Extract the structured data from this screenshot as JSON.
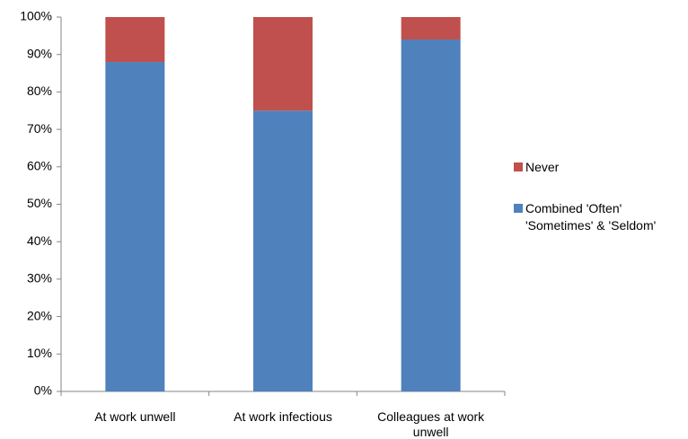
{
  "chart_data": {
    "type": "stacked_bar",
    "categories": [
      "At work unwell",
      "At work infectious",
      "Colleagues at work unwell"
    ],
    "series": [
      {
        "name": "Combined 'Often' 'Sometimes' & 'Seldom'",
        "color": "#4f81bd",
        "values": [
          88,
          75,
          94
        ]
      },
      {
        "name": "Never",
        "color": "#c0504d",
        "values": [
          12,
          25,
          6
        ]
      }
    ],
    "ylim": [
      0,
      100
    ],
    "yticks": [
      {
        "value": 0,
        "label": "0%"
      },
      {
        "value": 10,
        "label": "10%"
      },
      {
        "value": 20,
        "label": "20%"
      },
      {
        "value": 30,
        "label": "30%"
      },
      {
        "value": 40,
        "label": "40%"
      },
      {
        "value": 50,
        "label": "50%"
      },
      {
        "value": 60,
        "label": "60%"
      },
      {
        "value": 70,
        "label": "70%"
      },
      {
        "value": 80,
        "label": "80%"
      },
      {
        "value": 90,
        "label": "90%"
      },
      {
        "value": 100,
        "label": "100%"
      }
    ],
    "grid": false,
    "legend": "right"
  }
}
